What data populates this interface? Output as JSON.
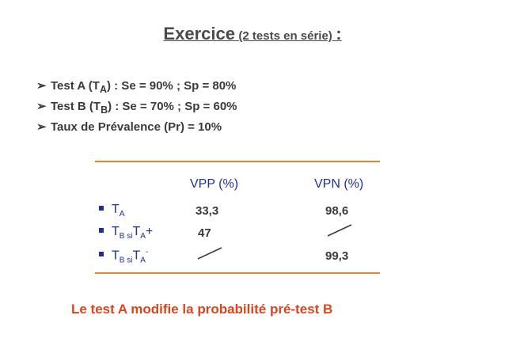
{
  "title": {
    "main": "Exercice",
    "sub": "(2 tests en série)",
    "colon": ":"
  },
  "bullets": [
    {
      "prefix": "Test A (T",
      "sub": "A",
      "suffix": ") : Se = 90% ; Sp = 80%"
    },
    {
      "prefix": "Test B (T",
      "sub": "B",
      "suffix": ") : Se = 70% ; Sp = 60%"
    },
    {
      "prefix": "Taux de Prévalence (Pr) = 10%",
      "sub": "",
      "suffix": ""
    }
  ],
  "table": {
    "headers": {
      "vpp": "VPP (%)",
      "vpn": "VPN (%)"
    },
    "rows": [
      {
        "t": "T",
        "sub1": "A",
        "vpp": "33,3",
        "vpn": "98,6"
      },
      {
        "t": "T",
        "sub1": "B si",
        "t2": "T",
        "sub2": "A",
        "sign": "+",
        "vpp": "47",
        "vpn": ""
      },
      {
        "t": "T",
        "sub1": "B si",
        "t2": "T",
        "sub2": "A",
        "sign": "-",
        "vpp": "",
        "vpn": "99,3"
      }
    ]
  },
  "conclusion": "Le test A modifie la probabilité pré-test B",
  "colors": {
    "accent": "#e8822f",
    "blue": "#1f2f99",
    "red": "#d9461c",
    "text": "#3a3a3a"
  }
}
